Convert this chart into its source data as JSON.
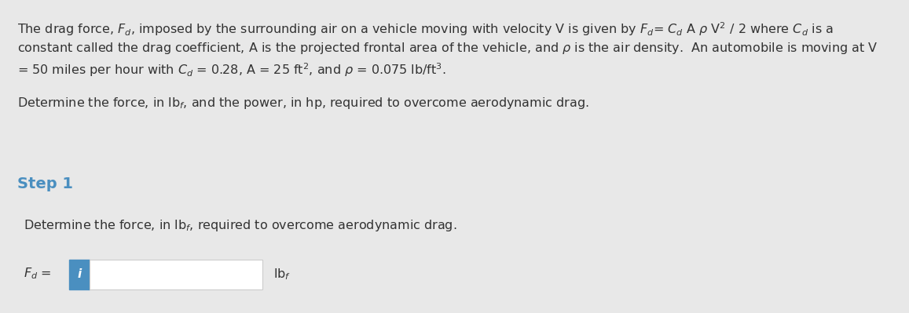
{
  "bg_color": "#e8e8e8",
  "panel1_bg": "#ffffff",
  "panel2_bg": "#eeeeee",
  "panel3_bg": "#ffffff",
  "border_color": "#cccccc",
  "step_color": "#4a8fc0",
  "text_color": "#333333",
  "input_box_color": "#4a8fc0",
  "input_field_bg": "#ffffff",
  "line1": "The drag force, $F_d$, imposed by the surrounding air on a vehicle moving with velocity V is given by $F_d$= $C_d$ A $\\rho$ V$^2$ / 2 where $C_d$ is a",
  "line2": "constant called the drag coefficient, A is the projected frontal area of the vehicle, and $\\rho$ is the air density.  An automobile is moving at V",
  "line3": "= 50 miles per hour with $C_d$ = 0.28, A = 25 ft$^2$, and $\\rho$ = 0.075 lb/ft$^3$.",
  "line4": "Determine the force, in lb$_f$, and the power, in hp, required to overcome aerodynamic drag.",
  "step_label": "Step 1",
  "step3_line1": "Determine the force, in lb$_f$, required to overcome aerodynamic drag.",
  "fd_label": "$F_d$ =",
  "unit_label": "lb$_f$"
}
